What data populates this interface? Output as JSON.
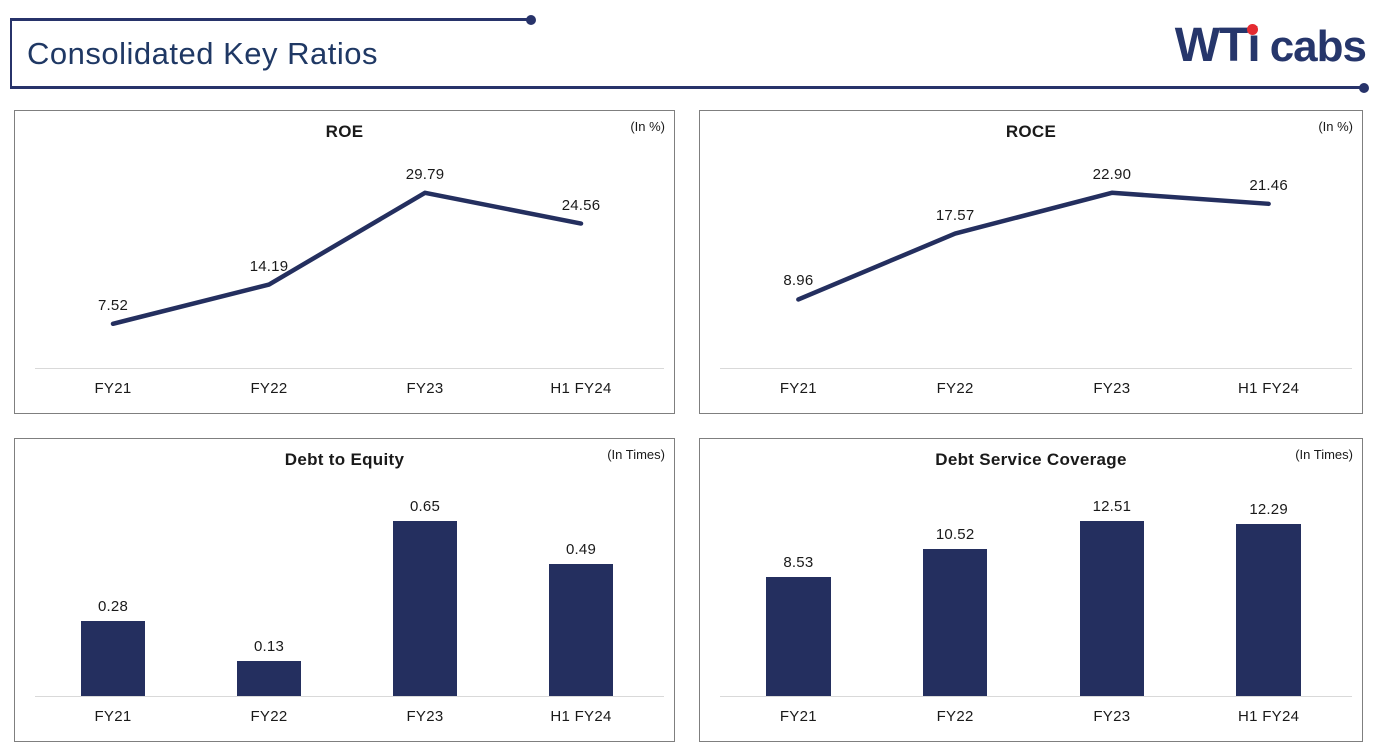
{
  "header": {
    "title": "Consolidated Key Ratios",
    "logo": {
      "wt": "WT",
      "i": "i",
      "cabs": "cabs"
    }
  },
  "colors": {
    "navy": "#27336A",
    "series_navy": "#242F5F",
    "logo_red": "#E52A30",
    "panel_border": "#7F7F7F",
    "axis_line": "#D9D9D9",
    "title_navy": "#1F3864",
    "text_dark": "#1A1A1A"
  },
  "chart_data": [
    {
      "type": "line",
      "title": "ROE",
      "unit": "(In %)",
      "categories": [
        "FY21",
        "FY22",
        "FY23",
        "H1 FY24"
      ],
      "values": [
        7.52,
        14.19,
        29.79,
        24.56
      ],
      "value_labels": [
        "7.52",
        "14.19",
        "29.79",
        "24.56"
      ],
      "xlabel": "",
      "ylabel": "",
      "ylim": [
        0,
        37
      ],
      "grid": false,
      "legend": false,
      "y_axis_shown": false
    },
    {
      "type": "line",
      "title": "ROCE",
      "unit": "(In %)",
      "categories": [
        "FY21",
        "FY22",
        "FY23",
        "H1 FY24"
      ],
      "values": [
        8.96,
        17.57,
        22.9,
        21.46
      ],
      "value_labels": [
        "8.96",
        "17.57",
        "22.90",
        "21.46"
      ],
      "xlabel": "",
      "ylabel": "",
      "ylim": [
        0,
        29
      ],
      "grid": false,
      "legend": false,
      "y_axis_shown": false
    },
    {
      "type": "bar",
      "title": "Debt to Equity",
      "unit": "(In Times)",
      "categories": [
        "FY21",
        "FY22",
        "FY23",
        "H1 FY24"
      ],
      "values": [
        0.28,
        0.13,
        0.65,
        0.49
      ],
      "value_labels": [
        "0.28",
        "0.13",
        "0.65",
        "0.49"
      ],
      "xlabel": "",
      "ylabel": "",
      "ylim": [
        0,
        0.82
      ],
      "grid": false,
      "legend": false,
      "y_axis_shown": false
    },
    {
      "type": "bar",
      "title": "Debt Service Coverage",
      "unit": "(In Times)",
      "categories": [
        "FY21",
        "FY22",
        "FY23",
        "H1 FY24"
      ],
      "values": [
        8.53,
        10.52,
        12.51,
        12.29
      ],
      "value_labels": [
        "8.53",
        "10.52",
        "12.51",
        "12.29"
      ],
      "xlabel": "",
      "ylabel": "",
      "ylim": [
        0,
        15.6
      ],
      "grid": false,
      "legend": false,
      "y_axis_shown": false
    }
  ]
}
